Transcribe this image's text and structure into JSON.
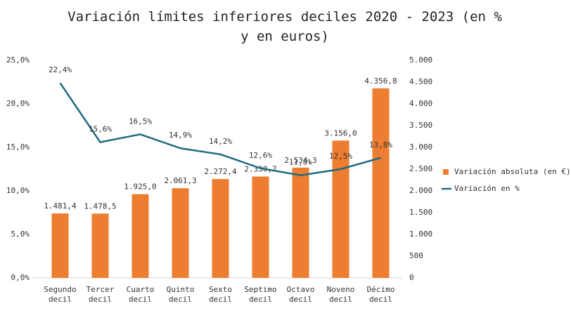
{
  "chart_data": {
    "type": "combo",
    "title": "Variación límites inferiores deciles 2020 - 2023 (en % y en euros)",
    "categories": [
      "Segundo decil",
      "Tercer decil",
      "Cuarto decil",
      "Quinto decil",
      "Sexto decil",
      "Septimo decil",
      "Octavo decil",
      "Noveno decil",
      "Décimo decil"
    ],
    "series": [
      {
        "name": "Variación absoluta (en €)",
        "type": "bar",
        "axis": "y2",
        "color": "#ed7d31",
        "values": [
          1481.4,
          1478.5,
          1925.0,
          2061.3,
          2272.4,
          2330.7,
          2534.3,
          3156.0,
          4356.8
        ],
        "value_labels": [
          "1.481,4",
          "1.478,5",
          "1.925,0",
          "2.061,3",
          "2.272,4",
          "2.330,7",
          "2.534,3",
          "3.156,0",
          "4.356,8"
        ]
      },
      {
        "name": "Variación en %",
        "type": "line",
        "axis": "y",
        "color": "#1f6b82",
        "values": [
          22.4,
          15.6,
          16.5,
          14.9,
          14.2,
          12.6,
          11.8,
          12.5,
          13.8
        ],
        "value_labels": [
          "22,4%",
          "15,6%",
          "16,5%",
          "14,9%",
          "14,2%",
          "12,6%",
          "11,8%",
          "12,5%",
          "13,8%"
        ]
      }
    ],
    "ylim": [
      0,
      25
    ],
    "yticks": [
      {
        "value": 0,
        "label": "0,0%"
      },
      {
        "value": 5,
        "label": "5,0%"
      },
      {
        "value": 10,
        "label": "10,0%"
      },
      {
        "value": 15,
        "label": "15,0%"
      },
      {
        "value": 20,
        "label": "20,0%"
      },
      {
        "value": 25,
        "label": "25,0%"
      }
    ],
    "y2lim": [
      0,
      5000
    ],
    "y2ticks": [
      0,
      500,
      {
        "value": 1000,
        "label": "1.000"
      },
      {
        "value": 1500,
        "label": "1.500"
      },
      {
        "value": 2000,
        "label": "2.000"
      },
      {
        "value": 2500,
        "label": "2.500"
      },
      {
        "value": 3000,
        "label": "3.000"
      },
      {
        "value": 3500,
        "label": "3.500"
      },
      {
        "value": 4000,
        "label": "4.000"
      },
      {
        "value": 4500,
        "label": "4.500"
      },
      {
        "value": 5000,
        "label": "5.000"
      }
    ],
    "grid": false,
    "legend": "right"
  }
}
